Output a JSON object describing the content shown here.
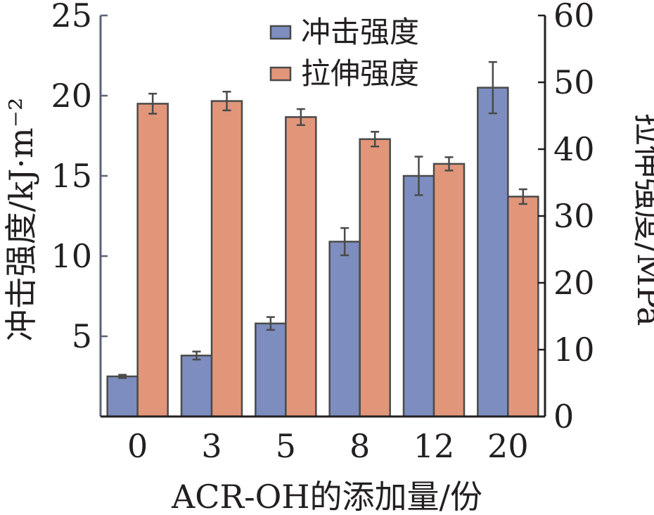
{
  "chart_data": {
    "type": "bar",
    "categories": [
      "0",
      "3",
      "5",
      "8",
      "12",
      "20"
    ],
    "xlabel": "ACR-OH的添加量/份",
    "ylabel_left": "冲击强度/kJ·m⁻²",
    "ylabel_right": "拉伸强度/MPa",
    "ylim_left": [
      0,
      25
    ],
    "ylim_right": [
      0,
      60
    ],
    "yticks_left": [
      "5",
      "10",
      "15",
      "20",
      "25"
    ],
    "yticks_right": [
      "0",
      "10",
      "20",
      "30",
      "40",
      "50",
      "60"
    ],
    "legend_position": "top-center",
    "series": [
      {
        "name": "冲击强度",
        "axis": "left",
        "color": "#7d8dbf",
        "values": [
          2.5,
          3.8,
          5.8,
          10.9,
          15.0,
          20.5
        ],
        "errors": [
          0.1,
          0.25,
          0.4,
          0.85,
          1.2,
          1.6
        ]
      },
      {
        "name": "拉伸强度",
        "axis": "right",
        "color": "#e1967a",
        "values": [
          46.8,
          47.2,
          44.8,
          41.5,
          37.8,
          32.9
        ],
        "errors": [
          1.5,
          1.4,
          1.2,
          1.1,
          1.0,
          1.1
        ]
      }
    ]
  }
}
